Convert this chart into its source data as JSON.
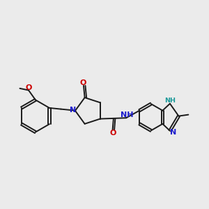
{
  "bg": "#ebebeb",
  "bc": "#1a1a1a",
  "Nc": "#1a1acc",
  "Oc": "#cc0000",
  "NHc": "#1a9999",
  "lw": 1.4,
  "dbg": 0.05,
  "fs": 8.0,
  "fss": 6.8,
  "xlim": [
    0.5,
    9.5
  ],
  "ylim": [
    2.5,
    8.5
  ]
}
